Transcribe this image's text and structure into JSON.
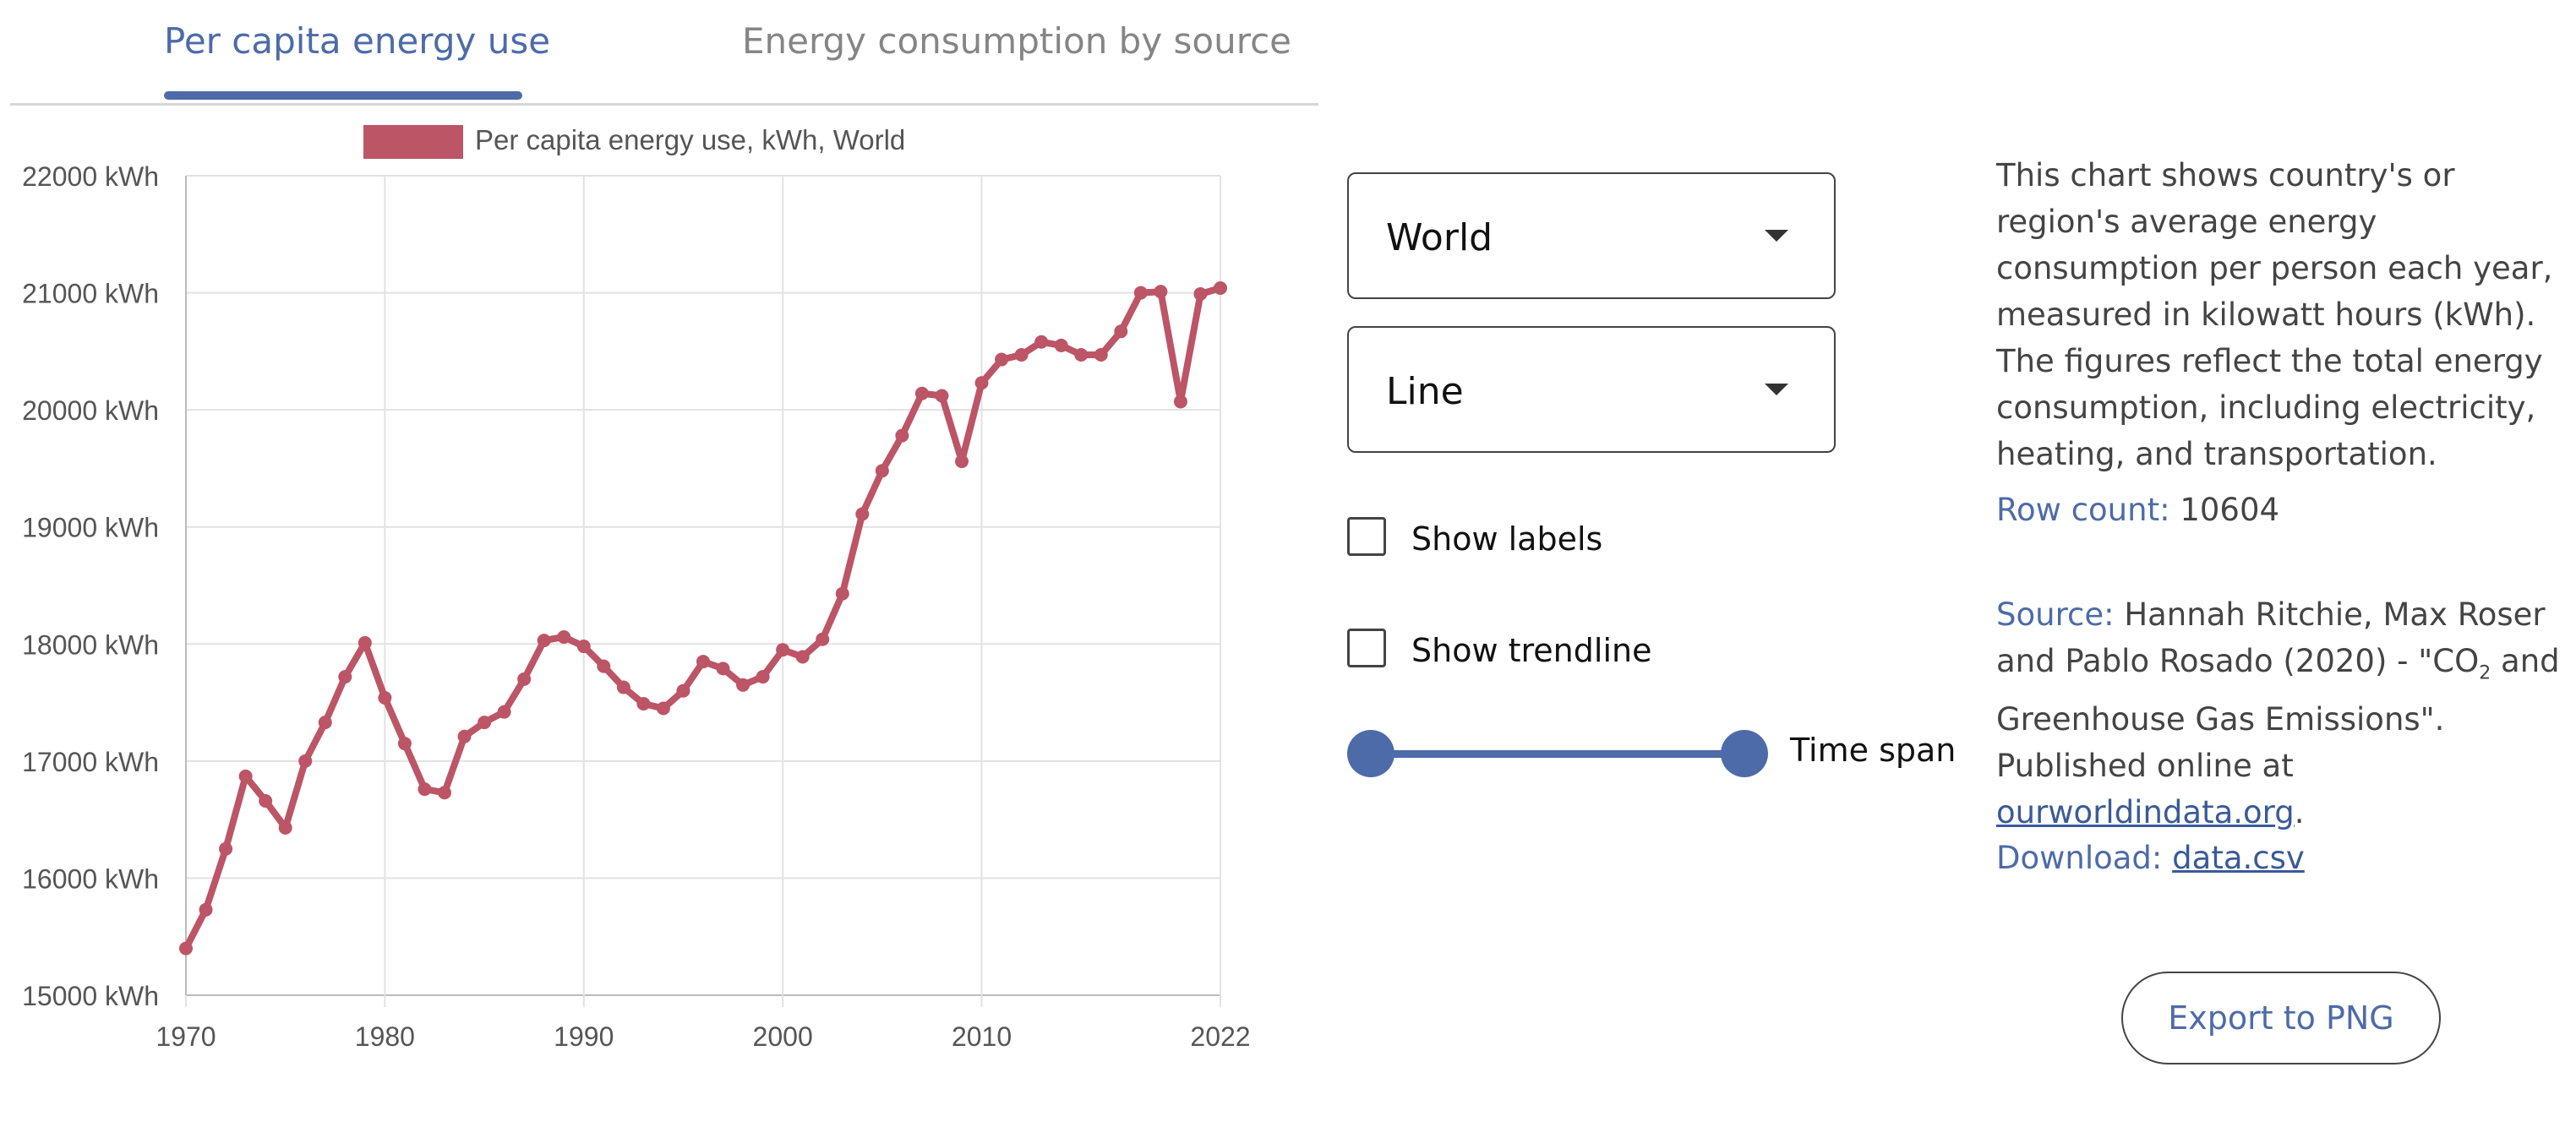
{
  "tabs": [
    {
      "label": "Per capita energy use",
      "active": true
    },
    {
      "label": "Energy consumption by source",
      "active": false
    }
  ],
  "controls": {
    "region_select": "World",
    "chart_type_select": "Line",
    "show_labels": {
      "label": "Show labels",
      "checked": false
    },
    "show_trendline": {
      "label": "Show trendline",
      "checked": false
    },
    "time_span_label": "Time span"
  },
  "info": {
    "description": "This chart shows country's or region's average energy consumption per person each year, measured in kilowatt hours (kWh). The figures reflect the total energy consumption, including electricity, heating, and transportation.",
    "row_count_label": "Row count:",
    "row_count_value": "10604",
    "source_label": "Source:",
    "source_text_1": "Hannah Ritchie, Max Roser and Pablo Rosado (2020) - \"CO",
    "source_sub": "2",
    "source_text_2": " and Greenhouse Gas Emissions\". Published online at ",
    "source_link": "ourworldindata.org",
    "source_end": ".",
    "download_label": "Download:",
    "download_link": "data.csv"
  },
  "export_button": "Export to PNG",
  "colors": {
    "accent": "#4d6ba8",
    "series": "#bc5566"
  },
  "chart_data": {
    "type": "line",
    "legend": "Per capita energy use, kWh, World",
    "ylim": [
      15000,
      22000
    ],
    "xlim": [
      1970,
      2022
    ],
    "y_ticks": [
      15000,
      16000,
      17000,
      18000,
      19000,
      20000,
      21000,
      22000
    ],
    "y_tick_labels": [
      "15000 kWh",
      "16000 kWh",
      "17000 kWh",
      "18000 kWh",
      "19000 kWh",
      "20000 kWh",
      "21000 kWh",
      "22000 kWh"
    ],
    "x_ticks": [
      1970,
      1980,
      1990,
      2000,
      2010,
      2022
    ],
    "x_tick_labels": [
      "1970",
      "1980",
      "1990",
      "2000",
      "2010",
      "2022"
    ],
    "grid": true,
    "legend_position": "top",
    "x": [
      1970,
      1971,
      1972,
      1973,
      1974,
      1975,
      1976,
      1977,
      1978,
      1979,
      1980,
      1981,
      1982,
      1983,
      1984,
      1985,
      1986,
      1987,
      1988,
      1989,
      1990,
      1991,
      1992,
      1993,
      1994,
      1995,
      1996,
      1997,
      1998,
      1999,
      2000,
      2001,
      2002,
      2003,
      2004,
      2005,
      2006,
      2007,
      2008,
      2009,
      2010,
      2011,
      2012,
      2013,
      2014,
      2015,
      2016,
      2017,
      2018,
      2019,
      2020,
      2021,
      2022
    ],
    "series": [
      {
        "name": "Per capita energy use, kWh, World",
        "values": [
          15400,
          15730,
          16250,
          16870,
          16660,
          16430,
          17000,
          17330,
          17720,
          18010,
          17540,
          17150,
          16760,
          16730,
          17210,
          17330,
          17420,
          17700,
          18030,
          18060,
          17980,
          17810,
          17630,
          17490,
          17450,
          17600,
          17850,
          17790,
          17650,
          17720,
          17950,
          17890,
          18040,
          18430,
          19110,
          19480,
          19780,
          20140,
          20120,
          19560,
          20230,
          20430,
          20470,
          20580,
          20550,
          20470,
          20470,
          20670,
          21000,
          21010,
          20070,
          20990,
          21040
        ]
      }
    ]
  }
}
